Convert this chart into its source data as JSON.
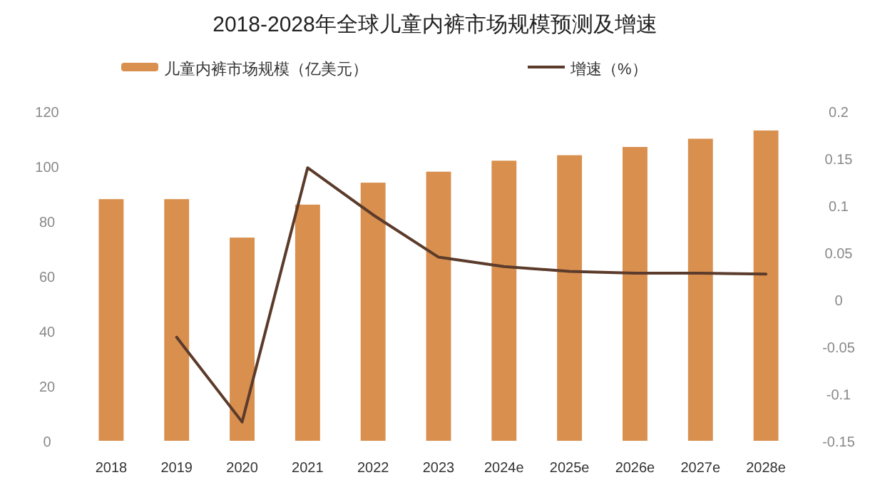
{
  "chart_data": {
    "type": "bar",
    "title": "2018-2028年全球儿童内裤市场规模预测及增速",
    "categories": [
      "2018",
      "2019",
      "2020",
      "2021",
      "2022",
      "2023",
      "2024e",
      "2025e",
      "2026e",
      "2027e",
      "2028e"
    ],
    "series": [
      {
        "name": "儿童内裤市场规模（亿美元）",
        "color": "#d98f4e",
        "values": [
          88,
          88,
          74,
          86,
          94,
          98,
          102,
          104,
          107,
          110,
          113
        ]
      },
      {
        "name": "增速（%）",
        "type": "line",
        "axis": "y2",
        "color": "#5b3b2b",
        "values": [
          null,
          -0.04,
          -0.13,
          0.14,
          0.09,
          0.045,
          0.035,
          0.03,
          0.028,
          0.028,
          0.027
        ]
      }
    ],
    "ylim": [
      0,
      120
    ],
    "yticks": [
      0,
      20,
      40,
      60,
      80,
      100,
      120
    ],
    "y2lim": [
      -0.15,
      0.2
    ],
    "y2ticks": [
      -0.15,
      -0.1,
      -0.05,
      0,
      0.05,
      0.1,
      0.15,
      0.2
    ],
    "grid": false,
    "legend": "top",
    "marker": "none",
    "line_style": "solid"
  }
}
